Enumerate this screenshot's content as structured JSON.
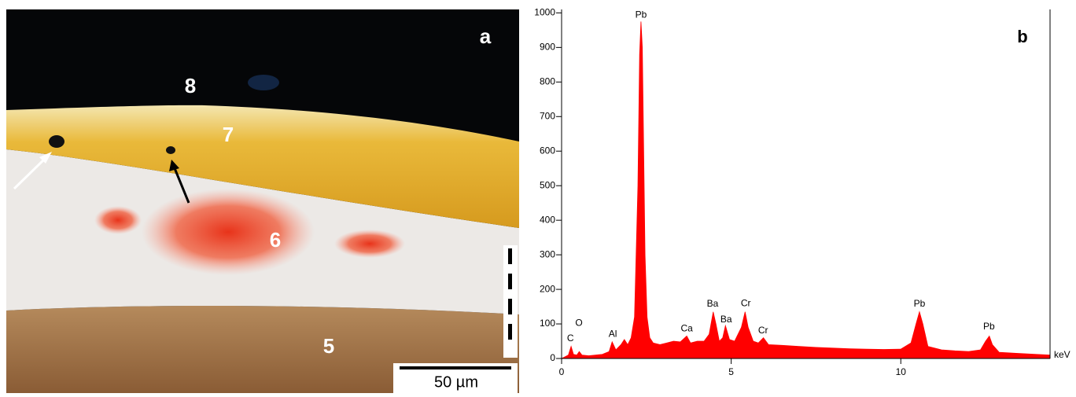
{
  "micrograph": {
    "panel_label": "a",
    "layer_labels": [
      "8",
      "7",
      "6",
      "5"
    ],
    "scale_bar": "50 µm"
  },
  "chart_data": {
    "type": "area",
    "panel_label": "b",
    "x_label": "keV",
    "color": "#ff0000",
    "x": [
      0,
      0.1,
      0.2,
      0.28,
      0.35,
      0.45,
      0.52,
      0.6,
      0.8,
      1.0,
      1.2,
      1.4,
      1.49,
      1.6,
      1.75,
      1.85,
      1.95,
      2.05,
      2.15,
      2.25,
      2.3,
      2.34,
      2.38,
      2.42,
      2.46,
      2.52,
      2.6,
      2.7,
      2.9,
      3.1,
      3.3,
      3.5,
      3.69,
      3.8,
      4.0,
      4.2,
      4.35,
      4.47,
      4.55,
      4.65,
      4.75,
      4.83,
      4.95,
      5.1,
      5.3,
      5.41,
      5.5,
      5.65,
      5.8,
      5.95,
      6.1,
      6.5,
      7.0,
      7.5,
      8.0,
      8.5,
      9.0,
      9.5,
      10.0,
      10.3,
      10.45,
      10.55,
      10.65,
      10.8,
      11.2,
      11.6,
      12.0,
      12.35,
      12.5,
      12.61,
      12.7,
      12.9,
      13.4,
      14.0,
      14.4
    ],
    "values": [
      0,
      5,
      10,
      35,
      12,
      10,
      20,
      10,
      8,
      10,
      12,
      20,
      48,
      25,
      40,
      55,
      40,
      60,
      120,
      500,
      880,
      975,
      900,
      600,
      300,
      120,
      60,
      45,
      40,
      45,
      50,
      48,
      65,
      45,
      50,
      50,
      70,
      135,
      100,
      50,
      60,
      95,
      55,
      50,
      90,
      135,
      90,
      50,
      45,
      60,
      40,
      38,
      35,
      32,
      30,
      28,
      27,
      26,
      27,
      45,
      100,
      135,
      100,
      35,
      25,
      22,
      20,
      25,
      50,
      65,
      40,
      18,
      15,
      12,
      10
    ],
    "xlim": [
      0,
      14.4
    ],
    "ylim": [
      0,
      1010
    ],
    "xticks": [
      0,
      5,
      10
    ],
    "yticks": [
      0,
      100,
      200,
      300,
      400,
      500,
      600,
      700,
      800,
      900,
      1000
    ],
    "annotations": [
      {
        "text": "C",
        "x": 0.26,
        "y": 57
      },
      {
        "text": "O",
        "x": 0.51,
        "y": 102
      },
      {
        "text": "Al",
        "x": 1.51,
        "y": 70
      },
      {
        "text": "Pb",
        "x": 2.34,
        "y": 993
      },
      {
        "text": "Ca",
        "x": 3.69,
        "y": 86
      },
      {
        "text": "Ba",
        "x": 4.45,
        "y": 157
      },
      {
        "text": "Ba",
        "x": 4.85,
        "y": 112
      },
      {
        "text": "Cr",
        "x": 5.43,
        "y": 159
      },
      {
        "text": "Cr",
        "x": 5.94,
        "y": 80
      },
      {
        "text": "Pb",
        "x": 10.55,
        "y": 157
      },
      {
        "text": "Pb",
        "x": 12.6,
        "y": 91
      }
    ]
  }
}
